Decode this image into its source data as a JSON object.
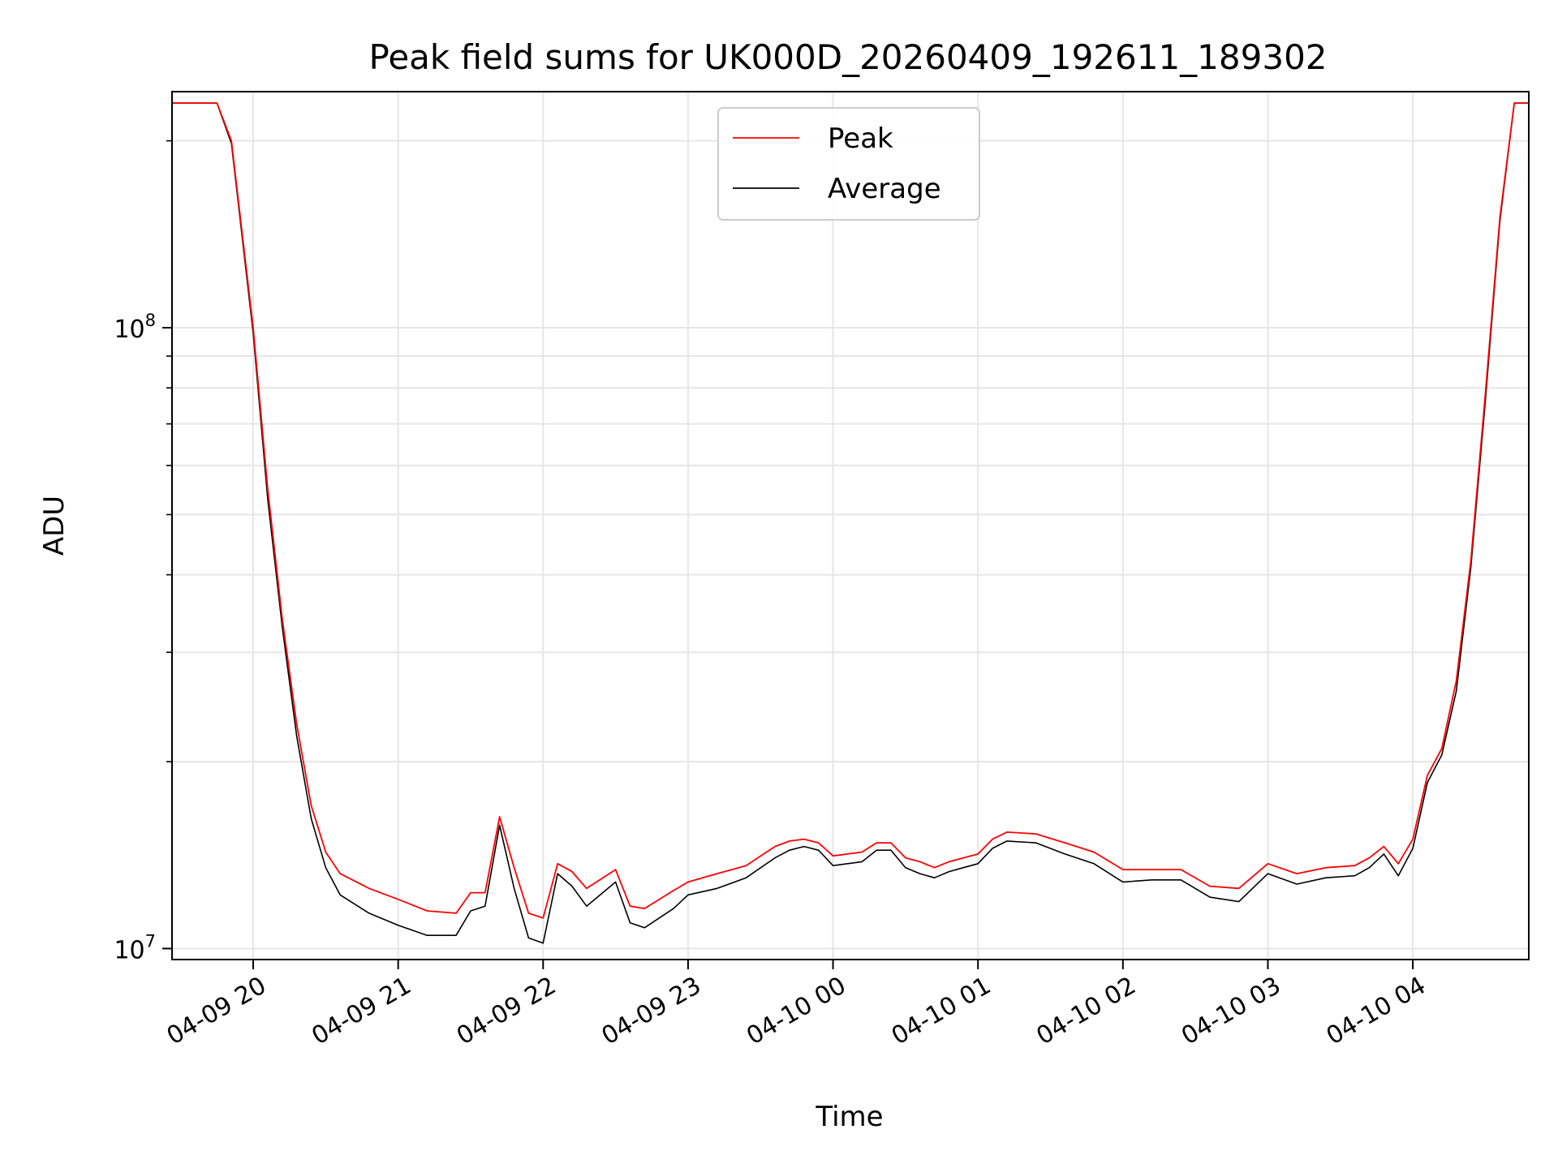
{
  "chart_data": {
    "type": "line",
    "title": "Peak field sums for UK000D_20260409_192611_189302",
    "xlabel": "Time",
    "ylabel": "ADU",
    "yscale": "log",
    "ylim": [
      9600000,
      240000000
    ],
    "xlim": [
      19.44,
      28.8
    ],
    "x_unit": "hours since 04-09 00:00",
    "grid": true,
    "legend_position": "upper-center",
    "x_ticks": [
      {
        "value": 20,
        "label": "04-09 20"
      },
      {
        "value": 21,
        "label": "04-09 21"
      },
      {
        "value": 22,
        "label": "04-09 22"
      },
      {
        "value": 23,
        "label": "04-09 23"
      },
      {
        "value": 24,
        "label": "04-10 00"
      },
      {
        "value": 25,
        "label": "04-10 01"
      },
      {
        "value": 26,
        "label": "04-10 02"
      },
      {
        "value": 27,
        "label": "04-10 03"
      },
      {
        "value": 28,
        "label": "04-10 04"
      }
    ],
    "y_major_ticks": [
      {
        "value": 10000000,
        "base": "10",
        "exp": "7"
      },
      {
        "value": 100000000,
        "base": "10",
        "exp": "8"
      }
    ],
    "y_minor_ticks": [
      20000000,
      30000000,
      40000000,
      50000000,
      60000000,
      70000000,
      80000000,
      90000000,
      200000000
    ],
    "series": [
      {
        "name": "Peak",
        "color": "#ff0000",
        "x": [
          19.44,
          19.75,
          19.85,
          20.0,
          20.1,
          20.2,
          20.3,
          20.4,
          20.5,
          20.6,
          20.8,
          21.0,
          21.2,
          21.4,
          21.5,
          21.6,
          21.7,
          21.8,
          21.9,
          22.0,
          22.1,
          22.2,
          22.3,
          22.5,
          22.6,
          22.7,
          22.9,
          23.0,
          23.2,
          23.4,
          23.6,
          23.7,
          23.8,
          23.9,
          24.0,
          24.1,
          24.2,
          24.3,
          24.4,
          24.5,
          24.6,
          24.7,
          24.8,
          24.9,
          25.0,
          25.1,
          25.2,
          25.4,
          25.6,
          25.8,
          26.0,
          26.2,
          26.4,
          26.6,
          26.8,
          27.0,
          27.2,
          27.4,
          27.6,
          27.7,
          27.8,
          27.9,
          28.0,
          28.1,
          28.2,
          28.3,
          28.4,
          28.5,
          28.6,
          28.7,
          28.8
        ],
        "values": [
          230000000,
          230000000,
          200000000,
          100000000,
          55000000,
          34000000,
          23000000,
          17000000,
          14300000,
          13200000,
          12500000,
          12000000,
          11500000,
          11400000,
          12300000,
          12300000,
          16300000,
          13500000,
          11400000,
          11200000,
          13700000,
          13300000,
          12500000,
          13400000,
          11700000,
          11600000,
          12400000,
          12800000,
          13200000,
          13600000,
          14600000,
          14900000,
          15000000,
          14800000,
          14100000,
          14200000,
          14300000,
          14800000,
          14800000,
          14000000,
          13800000,
          13500000,
          13800000,
          14000000,
          14200000,
          15000000,
          15400000,
          15300000,
          14800000,
          14300000,
          13400000,
          13400000,
          13400000,
          12600000,
          12500000,
          13700000,
          13200000,
          13500000,
          13600000,
          14000000,
          14600000,
          13700000,
          15000000,
          19000000,
          21000000,
          27000000,
          42000000,
          78000000,
          150000000,
          230000000,
          230000000
        ]
      },
      {
        "name": "Average",
        "color": "#000000",
        "x": [
          19.44,
          19.75,
          19.85,
          20.0,
          20.1,
          20.2,
          20.3,
          20.4,
          20.5,
          20.6,
          20.8,
          21.0,
          21.2,
          21.4,
          21.5,
          21.6,
          21.7,
          21.8,
          21.9,
          22.0,
          22.1,
          22.2,
          22.3,
          22.5,
          22.6,
          22.7,
          22.9,
          23.0,
          23.2,
          23.4,
          23.6,
          23.7,
          23.8,
          23.9,
          24.0,
          24.1,
          24.2,
          24.3,
          24.4,
          24.5,
          24.6,
          24.7,
          24.8,
          24.9,
          25.0,
          25.1,
          25.2,
          25.4,
          25.6,
          25.8,
          26.0,
          26.2,
          26.4,
          26.6,
          26.8,
          27.0,
          27.2,
          27.4,
          27.6,
          27.7,
          27.8,
          27.9,
          28.0,
          28.1,
          28.2,
          28.3,
          28.4,
          28.5,
          28.6,
          28.7,
          28.8
        ],
        "values": [
          230000000,
          230000000,
          198000000,
          98000000,
          53000000,
          33000000,
          22000000,
          16200000,
          13500000,
          12200000,
          11400000,
          10900000,
          10500000,
          10500000,
          11500000,
          11700000,
          15800000,
          12500000,
          10400000,
          10200000,
          13200000,
          12600000,
          11700000,
          12800000,
          11000000,
          10800000,
          11600000,
          12200000,
          12500000,
          13000000,
          14000000,
          14400000,
          14600000,
          14400000,
          13600000,
          13700000,
          13800000,
          14400000,
          14400000,
          13500000,
          13200000,
          13000000,
          13300000,
          13500000,
          13700000,
          14500000,
          14900000,
          14800000,
          14200000,
          13700000,
          12800000,
          12900000,
          12900000,
          12100000,
          11900000,
          13200000,
          12700000,
          13000000,
          13100000,
          13500000,
          14200000,
          13100000,
          14500000,
          18500000,
          20500000,
          26000000,
          41000000,
          76000000,
          148000000,
          230000000,
          230000000
        ]
      }
    ]
  }
}
